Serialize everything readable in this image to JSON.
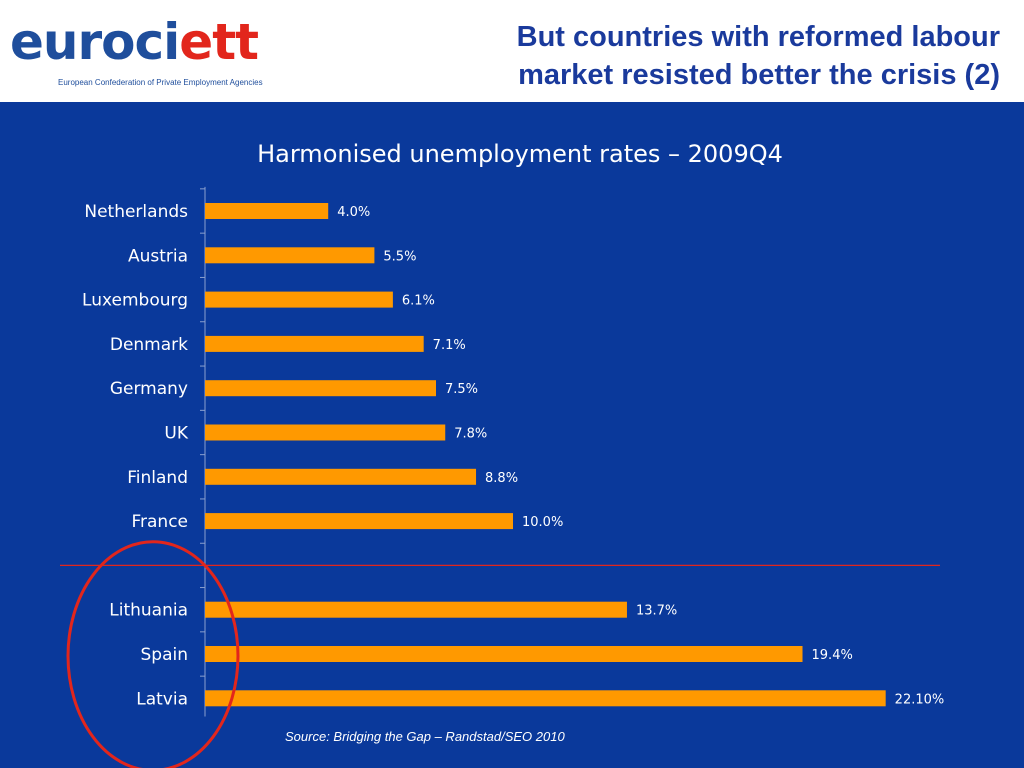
{
  "header": {
    "logo": {
      "word_main": "euroci",
      "word_accent": "ett",
      "tagline": "European Confederation of Private Employment Agencies"
    },
    "title_lines": [
      "But countries with reformed labour",
      "market resisted better the crisis (2)"
    ]
  },
  "colors": {
    "panel_background": "#0a399b",
    "bar": "#ff9900",
    "separator": "#e2261c",
    "highlight_circle": "#e2261c",
    "title_text": "#1a3a9c"
  },
  "chart_data": {
    "type": "bar",
    "orientation": "horizontal",
    "title": "Harmonised unemployment rates – 2009Q4",
    "xlim": [
      0,
      25
    ],
    "categories": [
      "Netherlands",
      "Austria",
      "Luxembourg",
      "Denmark",
      "Germany",
      "UK",
      "Finland",
      "France",
      "Lithuania",
      "Spain",
      "Latvia"
    ],
    "values": [
      4.0,
      5.5,
      6.1,
      7.1,
      7.5,
      7.8,
      8.8,
      10.0,
      13.7,
      19.4,
      22.1
    ],
    "data_labels": [
      "4.0%",
      "5.5%",
      "6.1%",
      "7.1%",
      "7.5%",
      "7.8%",
      "8.8%",
      "10.0%",
      "13.7%",
      "19.4%",
      "22.10%"
    ],
    "separator_after": "France",
    "highlighted": [
      "Lithuania",
      "Spain",
      "Latvia"
    ],
    "grid": false
  },
  "footer": {
    "source": "Source: Bridging the Gap – Randstad/SEO 2010"
  }
}
